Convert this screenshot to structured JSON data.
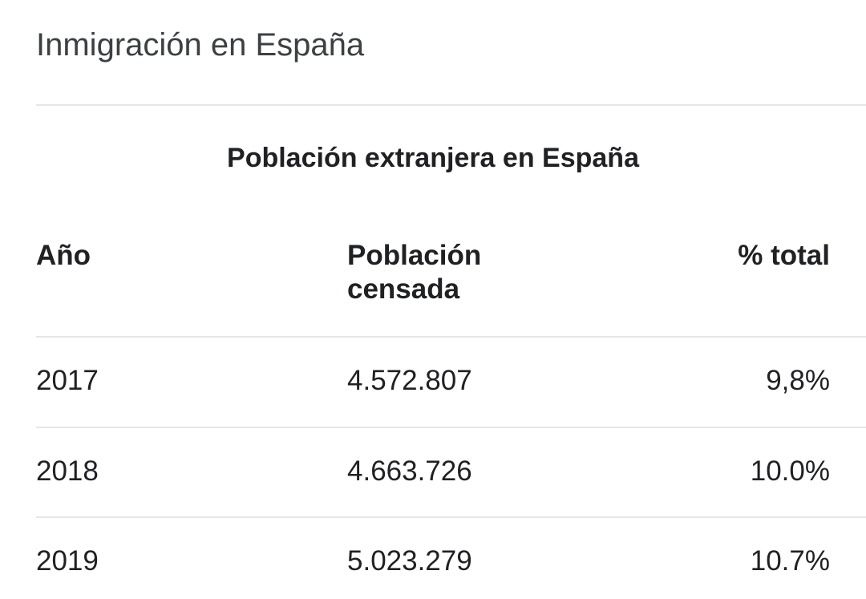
{
  "header": {
    "title": "Inmigración en España"
  },
  "table": {
    "caption": "Población extranjera en España",
    "columns": [
      "Año",
      "Población censada",
      "% total"
    ],
    "rows": [
      [
        "2017",
        "4.572.807",
        "9,8%"
      ],
      [
        "2018",
        "4.663.726",
        "10.0%"
      ],
      [
        "2019",
        "5.023.279",
        "10.7%"
      ]
    ]
  }
}
